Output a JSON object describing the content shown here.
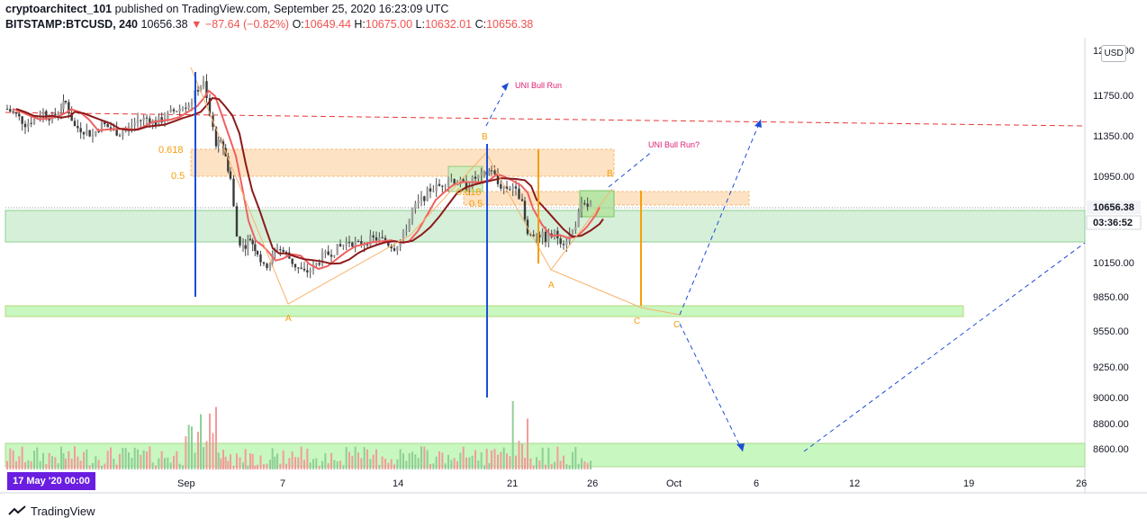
{
  "header": {
    "author": "cryptoarchitect_101",
    "published_text": "published on TradingView.com, September 25, 2020 16:23:09 UTC",
    "symbol": "BITSTAMP:BTCUSD, 240",
    "last": "10656.38",
    "change": "▼ −87.64 (−0.82%)",
    "o_label": "O:",
    "o_value": "10649.44",
    "h_label": "H:",
    "h_value": "10675.00",
    "l_label": "L:",
    "l_value": "10632.01",
    "c_label": "C:",
    "c_value": "10656.38"
  },
  "currency_button": "USD",
  "date_badge": "17 May '20  00:00",
  "footer": {
    "brand": "TradingView"
  },
  "colors": {
    "up": "#26a69a",
    "down": "#ef5350",
    "candle": "#4a4a4a",
    "zone_green": "#c8f0c0",
    "zone_orange": "#fcd9b0",
    "ma_dark": "#8b1a1a",
    "ma_light": "#f06060",
    "annot_orange": "#f59e0b",
    "annot_blue": "#1d4ed8",
    "annot_pink": "#e11d74"
  },
  "chart_data": {
    "type": "candlestick",
    "y_axis_labels": [
      "12150.00",
      "11750.00",
      "11350.00",
      "10950.00",
      "10656.38",
      "10150.00",
      "9850.00",
      "9550.00",
      "9250.00",
      "9000.00",
      "8800.00",
      "8600.00"
    ],
    "price_tag": {
      "value": "10656.38",
      "countdown": "03:36:52"
    },
    "x_axis_labels": [
      "Sep",
      "7",
      "14",
      "21",
      "26",
      "Oct",
      "6",
      "12",
      "19",
      "26"
    ],
    "fib_labels": [
      "0.618",
      "0.5",
      "0.618",
      "0.5"
    ],
    "wave_labels": [
      "A",
      "B",
      "A",
      "B",
      "C",
      "C"
    ],
    "annotations": [
      "UNI Bull Run",
      "UNI Bull Run?"
    ],
    "price_series": [
      {
        "t": 0,
        "p": 11620
      },
      {
        "t": 10,
        "p": 11560
      },
      {
        "t": 20,
        "p": 11480
      },
      {
        "t": 30,
        "p": 11520
      },
      {
        "t": 40,
        "p": 11590
      },
      {
        "t": 50,
        "p": 11530
      },
      {
        "t": 60,
        "p": 11640
      },
      {
        "t": 65,
        "p": 11680
      },
      {
        "t": 75,
        "p": 11450
      },
      {
        "t": 85,
        "p": 11420
      },
      {
        "t": 95,
        "p": 11370
      },
      {
        "t": 105,
        "p": 11480
      },
      {
        "t": 115,
        "p": 11430
      },
      {
        "t": 125,
        "p": 11390
      },
      {
        "t": 135,
        "p": 11440
      },
      {
        "t": 145,
        "p": 11510
      },
      {
        "t": 155,
        "p": 11530
      },
      {
        "t": 165,
        "p": 11480
      },
      {
        "t": 175,
        "p": 11540
      },
      {
        "t": 185,
        "p": 11600
      },
      {
        "t": 195,
        "p": 11640
      },
      {
        "t": 205,
        "p": 11700
      },
      {
        "t": 212,
        "p": 11820
      },
      {
        "t": 218,
        "p": 11860
      },
      {
        "t": 225,
        "p": 11550
      },
      {
        "t": 232,
        "p": 11300
      },
      {
        "t": 240,
        "p": 11260
      },
      {
        "t": 248,
        "p": 10950
      },
      {
        "t": 255,
        "p": 10400
      },
      {
        "t": 262,
        "p": 10300
      },
      {
        "t": 270,
        "p": 10380
      },
      {
        "t": 278,
        "p": 10250
      },
      {
        "t": 285,
        "p": 10100
      },
      {
        "t": 292,
        "p": 10160
      },
      {
        "t": 300,
        "p": 10300
      },
      {
        "t": 310,
        "p": 10230
      },
      {
        "t": 320,
        "p": 10120
      },
      {
        "t": 330,
        "p": 10050
      },
      {
        "t": 340,
        "p": 10100
      },
      {
        "t": 350,
        "p": 10200
      },
      {
        "t": 360,
        "p": 10250
      },
      {
        "t": 370,
        "p": 10300
      },
      {
        "t": 380,
        "p": 10360
      },
      {
        "t": 390,
        "p": 10320
      },
      {
        "t": 400,
        "p": 10360
      },
      {
        "t": 410,
        "p": 10380
      },
      {
        "t": 420,
        "p": 10350
      },
      {
        "t": 430,
        "p": 10300
      },
      {
        "t": 440,
        "p": 10400
      },
      {
        "t": 450,
        "p": 10650
      },
      {
        "t": 460,
        "p": 10750
      },
      {
        "t": 470,
        "p": 10850
      },
      {
        "t": 480,
        "p": 10880
      },
      {
        "t": 490,
        "p": 10960
      },
      {
        "t": 500,
        "p": 10920
      },
      {
        "t": 510,
        "p": 10880
      },
      {
        "t": 520,
        "p": 10960
      },
      {
        "t": 530,
        "p": 10980
      },
      {
        "t": 538,
        "p": 11050
      },
      {
        "t": 545,
        "p": 10900
      },
      {
        "t": 555,
        "p": 10860
      },
      {
        "t": 565,
        "p": 10900
      },
      {
        "t": 572,
        "p": 10700
      },
      {
        "t": 578,
        "p": 10400
      },
      {
        "t": 588,
        "p": 10440
      },
      {
        "t": 598,
        "p": 10380
      },
      {
        "t": 608,
        "p": 10420
      },
      {
        "t": 618,
        "p": 10350
      },
      {
        "t": 628,
        "p": 10450
      },
      {
        "t": 638,
        "p": 10680
      },
      {
        "t": 648,
        "p": 10700
      },
      {
        "t": 652,
        "p": 10656
      }
    ],
    "volume_estimate": "bars along bottom, peaks near Sep 4 and Sep 21"
  }
}
